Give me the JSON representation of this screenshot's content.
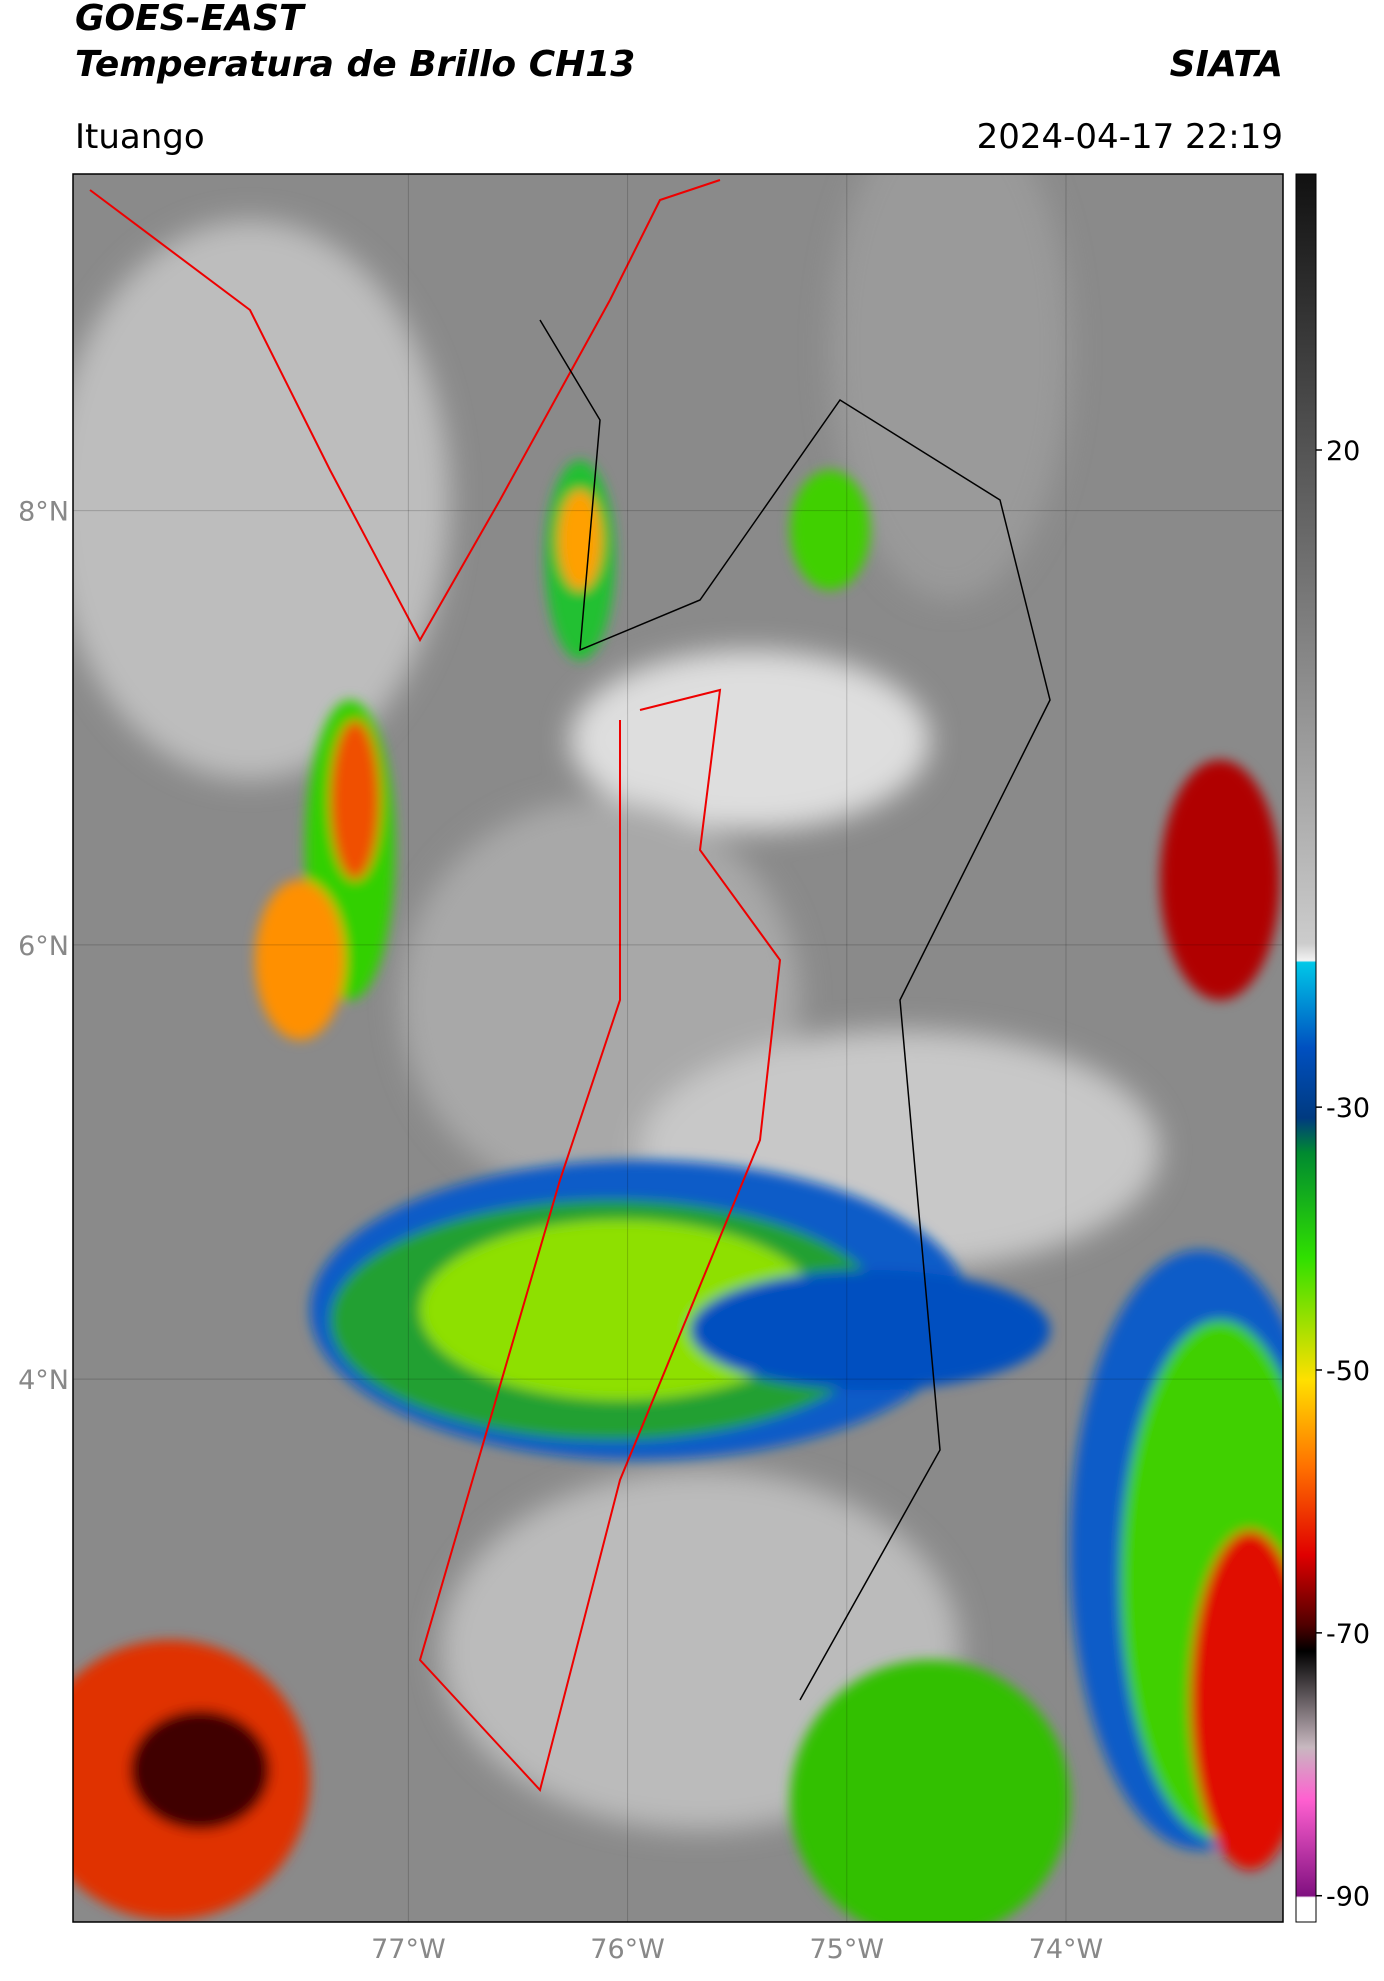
{
  "chart_data": {
    "type": "map",
    "title": "GOES-EAST",
    "subtitle": "Temperatura de Brillo CH13",
    "source": "SIATA",
    "location": "Ituango",
    "datetime": "2024-04-17 22:19",
    "xlim": [
      -78.53,
      -73.01
    ],
    "ylim": [
      1.5,
      9.55
    ],
    "xticks": [
      {
        "value": -77,
        "label": "77°W"
      },
      {
        "value": -76,
        "label": "76°W"
      },
      {
        "value": -75,
        "label": "75°W"
      },
      {
        "value": -74,
        "label": "74°W"
      }
    ],
    "yticks": [
      {
        "value": 8,
        "label": "8°N"
      },
      {
        "value": 6,
        "label": "6°N"
      },
      {
        "value": 4,
        "label": "4°N"
      }
    ],
    "grid": true,
    "colorbar": {
      "clim": [
        -92,
        41
      ],
      "ticks": [
        20,
        -30,
        -50,
        -70,
        -90
      ]
    }
  }
}
